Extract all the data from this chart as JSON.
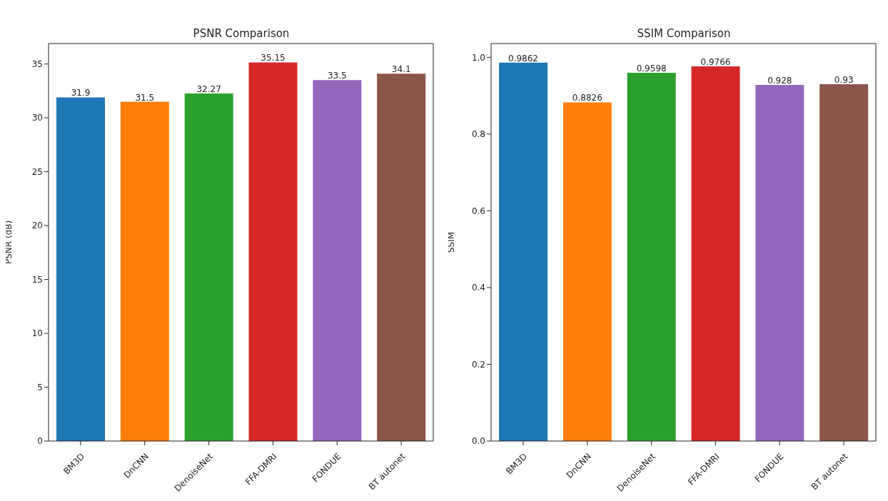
{
  "chart_data": [
    {
      "type": "bar",
      "title": "PSNR Comparison",
      "ylabel": "PSNR (dB)",
      "categories": [
        "BM3D",
        "DnCNN",
        "DenoiseNet",
        "FFA-DMRI",
        "FONDUE",
        "BT autonet"
      ],
      "values": [
        31.9,
        31.5,
        32.27,
        35.15,
        33.5,
        34.1
      ],
      "colors": [
        "#1f77b4",
        "#ff7f0e",
        "#2ca02c",
        "#d62728",
        "#9467bd",
        "#8c564b"
      ],
      "ylim": [
        0,
        36.9
      ],
      "yticks": [
        0,
        5,
        10,
        15,
        20,
        25,
        30,
        35
      ],
      "data_labels": true
    },
    {
      "type": "bar",
      "title": "SSIM Comparison",
      "ylabel": "SSIM",
      "categories": [
        "BM3D",
        "DnCNN",
        "DenoiseNet",
        "FFA-DMRI",
        "FONDUE",
        "BT autonet"
      ],
      "values": [
        0.9862,
        0.8826,
        0.9598,
        0.9766,
        0.928,
        0.93
      ],
      "colors": [
        "#1f77b4",
        "#ff7f0e",
        "#2ca02c",
        "#d62728",
        "#9467bd",
        "#8c564b"
      ],
      "ylim": [
        0,
        1.036
      ],
      "yticks": [
        {
          "value": 0,
          "label": "0.0"
        },
        {
          "value": 0.2,
          "label": "0.2"
        },
        {
          "value": 0.4,
          "label": "0.4"
        },
        {
          "value": 0.6,
          "label": "0.6"
        },
        {
          "value": 0.8,
          "label": "0.8"
        },
        {
          "value": 1,
          "label": "1.0"
        }
      ],
      "data_labels": true
    }
  ]
}
